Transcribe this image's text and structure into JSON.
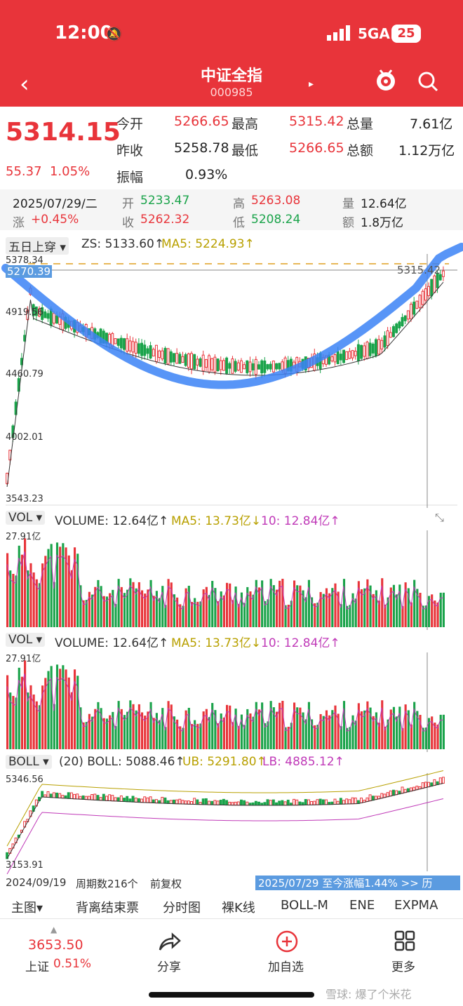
{
  "status": {
    "time": "12:00",
    "network": "5GA",
    "battery": "25"
  },
  "header": {
    "title": "中证全指",
    "code": "000985"
  },
  "quote": {
    "price": "5314.15",
    "change": "55.37",
    "change_pct": "1.05%",
    "rows": [
      {
        "l1": "今开",
        "v1": "5266.65",
        "l2": "最高",
        "v2": "5315.42",
        "l3": "总量",
        "v3": "7.61亿"
      },
      {
        "l1": "昨收",
        "v1": "5258.78",
        "l2": "最低",
        "v2": "5266.65",
        "l3": "总额",
        "v3": "1.12万亿"
      },
      {
        "l1": "振幅",
        "v1": "0.93%"
      }
    ]
  },
  "day": {
    "date": "2025/07/29/二",
    "chg_label": "涨",
    "chg": "+0.45%",
    "open_label": "开",
    "open": "5233.47",
    "close_label": "收",
    "close": "5262.32",
    "high_label": "高",
    "high": "5263.08",
    "low_label": "低",
    "low": "5208.24",
    "vol_label": "量",
    "vol": "12.64亿",
    "amt_label": "额",
    "amt": "1.8万亿"
  },
  "kline": {
    "signal": "五日上穿",
    "zs": "ZS: 5133.60↑",
    "ma5": "MA5: 5224.93↑",
    "ticks": [
      "5378.34",
      "5270.39",
      "4919.56",
      "4460.79",
      "4002.01",
      "3543.23"
    ],
    "last_label": "5315.42"
  },
  "vol1": {
    "tab": "VOL",
    "volume": "VOLUME: 12.64亿↑",
    "ma5": "MA5: 13.73亿↓",
    "ma10": "10: 12.84亿↑",
    "top": "27.91亿"
  },
  "vol2": {
    "tab": "VOL",
    "volume": "VOLUME: 12.64亿↑",
    "ma5": "MA5: 13.73亿↓",
    "ma10": "10: 12.84亿↑",
    "top": "27.91亿"
  },
  "boll": {
    "tab": "BOLL",
    "boll": "(20) BOLL: 5088.46↑",
    "ub": "UB: 5291.80↑",
    "lb": "LB: 4885.12↑",
    "top": "5346.56",
    "bottom": "3153.91"
  },
  "footer_axis": {
    "start": "2024/09/19",
    "period": "周期数216个",
    "adj": "前复权",
    "range": "2025/07/29 至今涨幅1.44% >> 历"
  },
  "tabs": [
    "主图▾",
    "背离结束票",
    "分时图",
    "裸K线",
    "BOLL-M",
    "ENE",
    "EXPMA"
  ],
  "bottom": {
    "sh_price": "3653.50",
    "sh_label": "上证",
    "sh_pct": "0.51%",
    "share": "分享",
    "add": "加自选",
    "more": "更多",
    "watermark": "雪球: 爆了个米花"
  },
  "colors": {
    "up": "#e8343a",
    "down": "#1aa34a",
    "accent": "#e8343a"
  }
}
